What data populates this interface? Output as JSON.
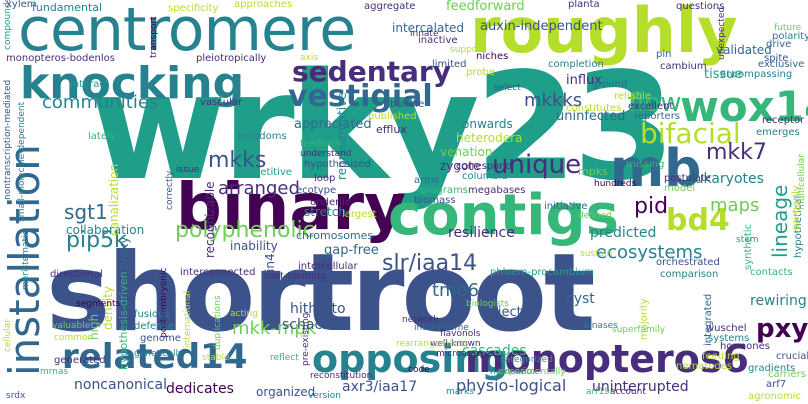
{
  "palette": {
    "dark_purple": "#440154",
    "indigo": "#472d7b",
    "blue": "#3b528b",
    "steel": "#31688e",
    "teal": "#26828e",
    "sea": "#1f9e89",
    "green": "#35b779",
    "lime": "#6ece58",
    "yellow_green": "#b5de2b",
    "yellow": "#fde725"
  },
  "words": [
    {
      "text": "wrky23",
      "color": "#1f9e89"
    },
    {
      "text": "shortroot",
      "color": "#3b528b"
    },
    {
      "text": "centromere",
      "color": "#26828e"
    },
    {
      "text": "roughly",
      "color": "#b5de2b"
    },
    {
      "text": "binary",
      "color": "#440154"
    },
    {
      "text": "contigs",
      "color": "#35b779"
    },
    {
      "text": "related14",
      "color": "#31688e"
    },
    {
      "text": "opposing",
      "color": "#26828e"
    },
    {
      "text": "monopteros6",
      "color": "#472d7b"
    },
    {
      "text": "installation",
      "color": "#31688e"
    },
    {
      "text": "knocking",
      "color": "#26828e"
    },
    {
      "text": "mb",
      "color": "#31688e"
    },
    {
      "text": "wox14",
      "color": "#35b779"
    },
    {
      "text": "sedentary",
      "color": "#472d7b"
    },
    {
      "text": "vestigial",
      "color": "#31688e"
    },
    {
      "text": "polyphenolic",
      "color": "#6ece58"
    },
    {
      "text": "bd4",
      "color": "#b5de2b"
    },
    {
      "text": "bifacial",
      "color": "#b5de2b"
    },
    {
      "text": "unique",
      "color": "#472d7b"
    },
    {
      "text": "pxy",
      "color": "#440154"
    },
    {
      "text": "lineage",
      "color": "#1f9e89"
    },
    {
      "text": "flow",
      "color": "#35b779"
    },
    {
      "text": "mkkks",
      "color": "#3b528b"
    },
    {
      "text": "communities",
      "color": "#26828e"
    },
    {
      "text": "fundamental",
      "color": "#26828e"
    },
    {
      "text": "pip5k",
      "color": "#26828e"
    },
    {
      "text": "sgt1",
      "color": "#31688e"
    },
    {
      "text": "mkks",
      "color": "#3b528b"
    },
    {
      "text": "mkk7",
      "color": "#472d7b"
    },
    {
      "text": "pid",
      "color": "#440154"
    },
    {
      "text": "slr/iaa14",
      "color": "#3b528b"
    },
    {
      "text": "tmo6",
      "color": "#31688e"
    },
    {
      "text": "ecosystems",
      "color": "#26828e"
    },
    {
      "text": "eukaryotes",
      "color": "#26828e"
    },
    {
      "text": "maps",
      "color": "#6ece58"
    },
    {
      "text": "arranged",
      "color": "#472d7b"
    },
    {
      "text": "mkk-mpk",
      "color": "#6ece58"
    },
    {
      "text": "axr3/iaa17",
      "color": "#3b528b"
    },
    {
      "text": "physio-logical",
      "color": "#3b528b"
    },
    {
      "text": "uninterrupted",
      "color": "#472d7b"
    },
    {
      "text": "dedicates",
      "color": "#440154"
    },
    {
      "text": "noncanonical",
      "color": "#3b528b"
    },
    {
      "text": "organized",
      "color": "#3b528b"
    },
    {
      "text": "cascades",
      "color": "#35b779"
    },
    {
      "text": "schachtii",
      "color": "#3b528b"
    },
    {
      "text": "hitherto",
      "color": "#3b528b"
    },
    {
      "text": "rewiring",
      "color": "#26828e"
    },
    {
      "text": "cyst",
      "color": "#31688e"
    },
    {
      "text": "resilience",
      "color": "#472d7b"
    },
    {
      "text": "predicted",
      "color": "#26828e"
    },
    {
      "text": "collaboration",
      "color": "#26828e"
    },
    {
      "text": "gap-free",
      "color": "#31688e"
    },
    {
      "text": "domain4",
      "color": "#3b528b"
    },
    {
      "text": "canalization",
      "color": "#b5de2b"
    },
    {
      "text": "proxy",
      "color": "#31688e"
    },
    {
      "text": "hypothesis-driven",
      "color": "#35b779"
    },
    {
      "text": "density",
      "color": "#b5de2b"
    },
    {
      "text": "high",
      "color": "#6ece58"
    },
    {
      "text": "stretch",
      "color": "#26828e"
    },
    {
      "text": "chromosomes",
      "color": "#31688e"
    },
    {
      "text": "recognizable",
      "color": "#472d7b"
    },
    {
      "text": "inability",
      "color": "#3b528b"
    },
    {
      "text": "zygote",
      "color": "#472d7b"
    },
    {
      "text": "venation",
      "color": "#6ece58"
    },
    {
      "text": "heterodera",
      "color": "#b5de2b"
    },
    {
      "text": "onwards",
      "color": "#26828e"
    },
    {
      "text": "mpks",
      "color": "#6ece58"
    },
    {
      "text": "appreciated",
      "color": "#31688e"
    },
    {
      "text": "uninfected",
      "color": "#31688e"
    },
    {
      "text": "influx",
      "color": "#472d7b"
    },
    {
      "text": "tissue",
      "color": "#1f9e89"
    },
    {
      "text": "validated",
      "color": "#31688e"
    },
    {
      "text": "auxin-independent",
      "color": "#3b528b"
    },
    {
      "text": "intercalated",
      "color": "#31688e"
    },
    {
      "text": "feedforward",
      "color": "#6ece58"
    },
    {
      "text": "hypothetical",
      "color": "#26828e"
    },
    {
      "text": "injected",
      "color": "#3b528b"
    },
    {
      "text": "representative",
      "color": "#26828e"
    },
    {
      "text": "primarily",
      "color": "#b5de2b"
    },
    {
      "text": "efflux",
      "color": "#472d7b"
    },
    {
      "text": "specificity",
      "color": "#b5de2b"
    },
    {
      "text": "approaches",
      "color": "#b5de2b"
    },
    {
      "text": "aggregate",
      "color": "#472d7b"
    },
    {
      "text": "planta",
      "color": "#472d7b"
    },
    {
      "text": "questions",
      "color": "#472d7b"
    },
    {
      "text": "drive",
      "color": "#31688e"
    },
    {
      "text": "spite",
      "color": "#3b528b"
    },
    {
      "text": "exclusive",
      "color": "#31688e"
    },
    {
      "text": "encompassing",
      "color": "#26828e"
    },
    {
      "text": "monopteros-bodenlos",
      "color": "#472d7b"
    },
    {
      "text": "pleiotropically",
      "color": "#472d7b"
    },
    {
      "text": "transport",
      "color": "#440154"
    },
    {
      "text": "inactive",
      "color": "#472d7b"
    },
    {
      "text": "limited",
      "color": "#3b528b"
    },
    {
      "text": "niches",
      "color": "#440154"
    },
    {
      "text": "probe",
      "color": "#b5de2b"
    },
    {
      "text": "completion",
      "color": "#26828e"
    },
    {
      "text": "cambium",
      "color": "#472d7b"
    },
    {
      "text": "ground",
      "color": "#31688e"
    },
    {
      "text": "pin",
      "color": "#31688e"
    },
    {
      "text": "future",
      "color": "#6ece58"
    },
    {
      "text": "polarity",
      "color": "#26828e"
    },
    {
      "text": "unexpected",
      "color": "#472d7b"
    },
    {
      "text": "nontranscription-mediated",
      "color": "#3b528b"
    },
    {
      "text": "small-molecule-dependent",
      "color": "#26828e"
    },
    {
      "text": "compounds",
      "color": "#1f9e89"
    },
    {
      "text": "xylem",
      "color": "#3b528b"
    },
    {
      "text": "lately",
      "color": "#35b779"
    },
    {
      "text": "interact",
      "color": "#1f9e89"
    },
    {
      "text": "vascular",
      "color": "#472d7b"
    },
    {
      "text": "published",
      "color": "#b5de2b"
    },
    {
      "text": "bundle",
      "color": "#3b528b"
    },
    {
      "text": "kingdoms",
      "color": "#26828e"
    },
    {
      "text": "repetitive",
      "color": "#1f9e89"
    },
    {
      "text": "feedback",
      "color": "#35b779"
    },
    {
      "text": "understand",
      "color": "#472d7b"
    },
    {
      "text": "hypothesized",
      "color": "#3b528b"
    },
    {
      "text": "loop",
      "color": "#472d7b"
    },
    {
      "text": "ecotype",
      "color": "#3b528b"
    },
    {
      "text": "underlie",
      "color": "#472d7b"
    },
    {
      "text": "largest",
      "color": "#b5de2b"
    },
    {
      "text": "meristematic",
      "color": "#26828e"
    },
    {
      "text": "arms",
      "color": "#31688e"
    },
    {
      "text": "programs",
      "color": "#35b779"
    },
    {
      "text": "biomass",
      "color": "#3b528b"
    },
    {
      "text": "megabases",
      "color": "#472d7b"
    },
    {
      "text": "columbia",
      "color": "#26828e"
    },
    {
      "text": "correspond",
      "color": "#472d7b"
    },
    {
      "text": "constitutes",
      "color": "#b5de2b"
    },
    {
      "text": "reporters",
      "color": "#31688e"
    },
    {
      "text": "excellent",
      "color": "#472d7b"
    },
    {
      "text": "reliable",
      "color": "#b5de2b"
    },
    {
      "text": "multicellular",
      "color": "#6ece58"
    },
    {
      "text": "emerges",
      "color": "#26828e"
    },
    {
      "text": "receptor",
      "color": "#472d7b"
    },
    {
      "text": "missing",
      "color": "#35b779"
    },
    {
      "text": "hundreds",
      "color": "#440154"
    },
    {
      "text": "postulate",
      "color": "#472d7b"
    },
    {
      "text": "model",
      "color": "#6ece58"
    },
    {
      "text": "initiative",
      "color": "#31688e"
    },
    {
      "text": "defined",
      "color": "#6ece58"
    },
    {
      "text": "stem",
      "color": "#1f9e89"
    },
    {
      "text": "sustain",
      "color": "#b5de2b"
    },
    {
      "text": "orchestrated",
      "color": "#3b528b"
    },
    {
      "text": "intercellular",
      "color": "#472d7b"
    },
    {
      "text": "interconnected",
      "color": "#472d7b"
    },
    {
      "text": "root-forming",
      "color": "#472d7b"
    },
    {
      "text": "phloem-procambium",
      "color": "#1f9e89"
    },
    {
      "text": "comparison",
      "color": "#26828e"
    },
    {
      "text": "contacts",
      "color": "#35b779"
    },
    {
      "text": "directional",
      "color": "#472d7b"
    },
    {
      "text": "segments",
      "color": "#440154"
    },
    {
      "text": "cellular",
      "color": "#b5de2b"
    },
    {
      "text": "valuable",
      "color": "#6ece58"
    },
    {
      "text": "common",
      "color": "#b5de2b"
    },
    {
      "text": "post-embryonic",
      "color": "#440154"
    },
    {
      "text": "fusions",
      "color": "#26828e"
    },
    {
      "text": "defense",
      "color": "#26828e"
    },
    {
      "text": "international",
      "color": "#b5de2b"
    },
    {
      "text": "genome",
      "color": "#3b528b"
    },
    {
      "text": "generated",
      "color": "#472d7b"
    },
    {
      "text": "genetically",
      "color": "#26828e"
    },
    {
      "text": "srdx",
      "color": "#3b528b"
    },
    {
      "text": "mrnas",
      "color": "#35b779"
    },
    {
      "text": "biologists",
      "color": "#6ece58"
    },
    {
      "text": "network",
      "color": "#472d7b"
    },
    {
      "text": "kinases",
      "color": "#26828e"
    },
    {
      "text": "acting",
      "color": "#b5de2b"
    },
    {
      "text": "duplications",
      "color": "#6ece58"
    },
    {
      "text": "stable",
      "color": "#b5de2b"
    },
    {
      "text": "reflect",
      "color": "#35b779"
    },
    {
      "text": "code",
      "color": "#440154"
    },
    {
      "text": "reconstitution",
      "color": "#472d7b"
    },
    {
      "text": "homeobox",
      "color": "#26828e"
    },
    {
      "text": "marks",
      "color": "#26828e"
    },
    {
      "text": "well-known",
      "color": "#472d7b"
    },
    {
      "text": "interactome",
      "color": "#31688e"
    },
    {
      "text": "rearrangements",
      "color": "#b5de2b"
    },
    {
      "text": "flavonols",
      "color": "#472d7b"
    },
    {
      "text": "microarrays",
      "color": "#472d7b"
    },
    {
      "text": "categorized",
      "color": "#1f9e89"
    },
    {
      "text": "experimentally",
      "color": "#6ece58"
    },
    {
      "text": "arf19",
      "color": "#35b779"
    },
    {
      "text": "account",
      "color": "#472d7b"
    },
    {
      "text": "version",
      "color": "#26828e"
    },
    {
      "text": "pre-existing",
      "color": "#472d7b"
    },
    {
      "text": "majority",
      "color": "#b5de2b"
    },
    {
      "text": "superfamily",
      "color": "#6ece58"
    },
    {
      "text": "integrated",
      "color": "#31688e"
    },
    {
      "text": "synthetic",
      "color": "#35b779"
    },
    {
      "text": "wuschel",
      "color": "#472d7b"
    },
    {
      "text": "systems",
      "color": "#26828e"
    },
    {
      "text": "hormones",
      "color": "#472d7b"
    },
    {
      "text": "feeding",
      "color": "#b5de2b"
    },
    {
      "text": "nematodes",
      "color": "#b5de2b"
    },
    {
      "text": "gradients",
      "color": "#26828e"
    },
    {
      "text": "crucial",
      "color": "#3b528b"
    },
    {
      "text": "carriers",
      "color": "#6ece58"
    },
    {
      "text": "arf7",
      "color": "#3b528b"
    },
    {
      "text": "agronomic",
      "color": "#b5de2b"
    },
    {
      "text": "innate",
      "color": "#472d7b"
    },
    {
      "text": "support",
      "color": "#b5de2b"
    },
    {
      "text": "axis",
      "color": "#b5de2b"
    },
    {
      "text": "select",
      "color": "#3b528b"
    },
    {
      "text": "issue",
      "color": "#472d7b"
    },
    {
      "text": "correctly",
      "color": "#3b528b"
    }
  ]
}
